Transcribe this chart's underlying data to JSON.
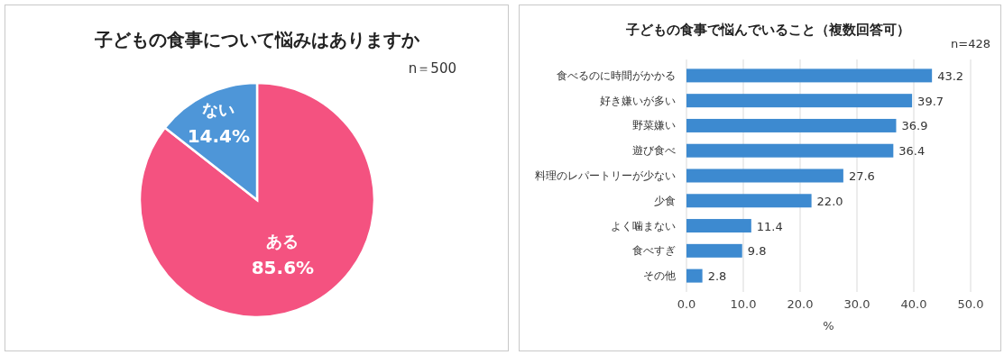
{
  "chart_data": [
    {
      "type": "pie",
      "title": "子どもの食事について悩みはありますか",
      "categories": [
        "ある",
        "ない"
      ],
      "values": [
        85.6,
        14.4
      ],
      "colors": [
        "#f45280",
        "#4e96d8"
      ],
      "value_labels": [
        "85.6%",
        "14.4%"
      ],
      "annotations": [
        "n＝500"
      ]
    },
    {
      "type": "bar",
      "orientation": "horizontal",
      "title": "子どもの食事で悩んでいること（複数回答可）",
      "categories": [
        "食べるのに時間がかかる",
        "好き嫌いが多い",
        "野菜嫌い",
        "遊び食べ",
        "料理のレパートリーが少ない",
        "少食",
        "よく噛まない",
        "食べすぎ",
        "その他"
      ],
      "values": [
        43.2,
        39.7,
        36.9,
        36.4,
        27.6,
        22.0,
        11.4,
        9.8,
        2.8
      ],
      "value_labels": [
        "43.2",
        "39.7",
        "36.9",
        "36.4",
        "27.6",
        "22.0",
        "11.4",
        "9.8",
        "2.8"
      ],
      "color": "#3d8ad0",
      "xlabel": "%",
      "xlim": [
        0,
        50
      ],
      "xticks": [
        {
          "value": 0,
          "label": "0.0"
        },
        {
          "value": 10,
          "label": "10.0"
        },
        {
          "value": 20,
          "label": "20.0"
        },
        {
          "value": 30,
          "label": "30.0"
        },
        {
          "value": 40,
          "label": "40.0"
        },
        {
          "value": 50,
          "label": "50.0"
        }
      ],
      "grid": "x",
      "annotations": [
        "n=428"
      ]
    }
  ]
}
